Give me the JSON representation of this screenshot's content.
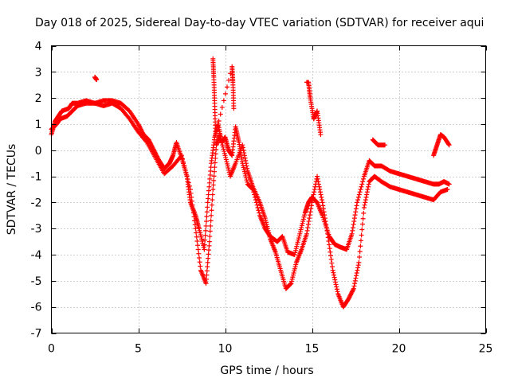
{
  "chart_data": {
    "type": "scatter",
    "title": "Day 018 of 2025, Sidereal Day-to-day VTEC variation (SDTVAR) for receiver aqui",
    "xlabel": "GPS time / hours",
    "ylabel": "SDTVAR / TECUs",
    "xlim": [
      0,
      25
    ],
    "ylim": [
      -7,
      4
    ],
    "xticks": [
      0,
      5,
      10,
      15,
      20,
      25
    ],
    "yticks": [
      4,
      3,
      2,
      1,
      0,
      -1,
      -2,
      -3,
      -4,
      -5,
      -6,
      -7
    ],
    "xtick_labels": [
      "0",
      "5",
      "10",
      "15",
      "20",
      "25"
    ],
    "ytick_labels": [
      "4",
      "3",
      "2",
      "1",
      "0",
      "-1",
      "-2",
      "-3",
      "-4",
      "-5",
      "-6",
      "-7"
    ],
    "grid": true,
    "marker": "plus",
    "color": "#ff0000",
    "series": [
      {
        "x": [
          0.0,
          0.2,
          0.4,
          0.6,
          1.0,
          1.2,
          1.5,
          2.0,
          2.5,
          3.0,
          3.5,
          4.0,
          4.5,
          5.0,
          5.3,
          5.6,
          5.9,
          6.2,
          6.5,
          6.8,
          7.0,
          7.2,
          7.5,
          7.8,
          8.0,
          8.3,
          8.5,
          8.8,
          9.0,
          9.2,
          9.4,
          9.6,
          9.8,
          10.0,
          10.2,
          10.4,
          10.6,
          10.8,
          11.0,
          11.3,
          11.6,
          12.0,
          12.3,
          12.6,
          13.0,
          13.3,
          13.6,
          14.0,
          14.3,
          14.6,
          14.8,
          15.0,
          15.3,
          15.6,
          16.0,
          16.3,
          16.6,
          17.0,
          17.3,
          17.6,
          18.0,
          18.3,
          18.6,
          19.0,
          19.5,
          20.0,
          20.5,
          21.0,
          21.5,
          22.0,
          22.3,
          22.6,
          22.9
        ],
        "y": [
          0.6,
          1.1,
          1.3,
          1.5,
          1.6,
          1.8,
          1.8,
          1.9,
          1.8,
          1.9,
          1.9,
          1.8,
          1.5,
          1.0,
          0.6,
          0.4,
          0.0,
          -0.4,
          -0.7,
          -0.5,
          -0.2,
          0.3,
          -0.3,
          -1.0,
          -2.0,
          -2.5,
          -3.0,
          -3.8,
          -2.0,
          -0.5,
          0.5,
          1.0,
          0.3,
          0.5,
          0.0,
          -0.2,
          0.9,
          0.3,
          -0.5,
          -1.3,
          -1.5,
          -2.5,
          -3.0,
          -3.3,
          -3.5,
          -3.3,
          -3.9,
          -4.0,
          -3.2,
          -2.4,
          -2.0,
          -1.8,
          -2.0,
          -2.5,
          -3.3,
          -3.6,
          -3.7,
          -3.8,
          -3.2,
          -2.0,
          -1.0,
          -0.4,
          -0.6,
          -0.6,
          -0.8,
          -0.9,
          -1.0,
          -1.1,
          -1.2,
          -1.3,
          -1.3,
          -1.2,
          -1.3
        ]
      },
      {
        "x": [
          0.0,
          0.3,
          0.5,
          0.9,
          1.2,
          1.5,
          2.0,
          2.5,
          3.0,
          3.5,
          4.0,
          4.5,
          5.0,
          5.5,
          6.0,
          6.5,
          7.0,
          7.5,
          8.0,
          8.3,
          8.6,
          8.9,
          9.1,
          9.3,
          9.5,
          9.7,
          10.0,
          10.3,
          10.6,
          11.0,
          11.3,
          11.6,
          12.0,
          12.3,
          12.6,
          12.9,
          13.2,
          13.5,
          13.8,
          14.1,
          14.4,
          14.7,
          15.0,
          15.3,
          15.6,
          15.9,
          16.2,
          16.5,
          16.8,
          17.1,
          17.4,
          17.7,
          18.0,
          18.3,
          18.6,
          19.0,
          19.5,
          20.0,
          20.5,
          21.0,
          21.5,
          22.0,
          22.4,
          22.8
        ],
        "y": [
          0.8,
          1.0,
          1.2,
          1.3,
          1.5,
          1.7,
          1.8,
          1.8,
          1.7,
          1.8,
          1.6,
          1.2,
          0.7,
          0.3,
          -0.3,
          -0.9,
          -0.6,
          -0.2,
          -1.5,
          -3.0,
          -4.6,
          -5.1,
          -3.5,
          -1.5,
          0.2,
          0.6,
          -0.2,
          -1.0,
          -0.5,
          0.2,
          -0.8,
          -1.4,
          -2.0,
          -2.6,
          -3.4,
          -3.9,
          -4.6,
          -5.3,
          -5.1,
          -4.3,
          -3.8,
          -3.2,
          -2.0,
          -1.0,
          -2.0,
          -3.2,
          -4.6,
          -5.5,
          -6.0,
          -5.7,
          -5.3,
          -4.3,
          -2.2,
          -1.2,
          -1.0,
          -1.2,
          -1.4,
          -1.5,
          -1.6,
          -1.7,
          -1.8,
          -1.9,
          -1.6,
          -1.5
        ]
      },
      {
        "x": [
          2.5,
          2.6,
          9.3,
          9.35,
          9.4,
          9.45,
          10.4,
          10.45,
          10.5,
          14.7,
          14.8,
          14.9,
          15.1,
          15.3,
          15.5,
          18.5,
          18.8,
          19.2,
          22.0,
          22.2,
          22.4,
          22.6,
          22.9
        ],
        "y": [
          2.8,
          2.7,
          3.5,
          2.8,
          1.8,
          0.6,
          3.2,
          2.6,
          1.6,
          2.6,
          2.6,
          2.0,
          1.2,
          1.5,
          0.6,
          0.4,
          0.2,
          0.2,
          -0.2,
          0.2,
          0.6,
          0.5,
          0.2
        ]
      }
    ]
  }
}
